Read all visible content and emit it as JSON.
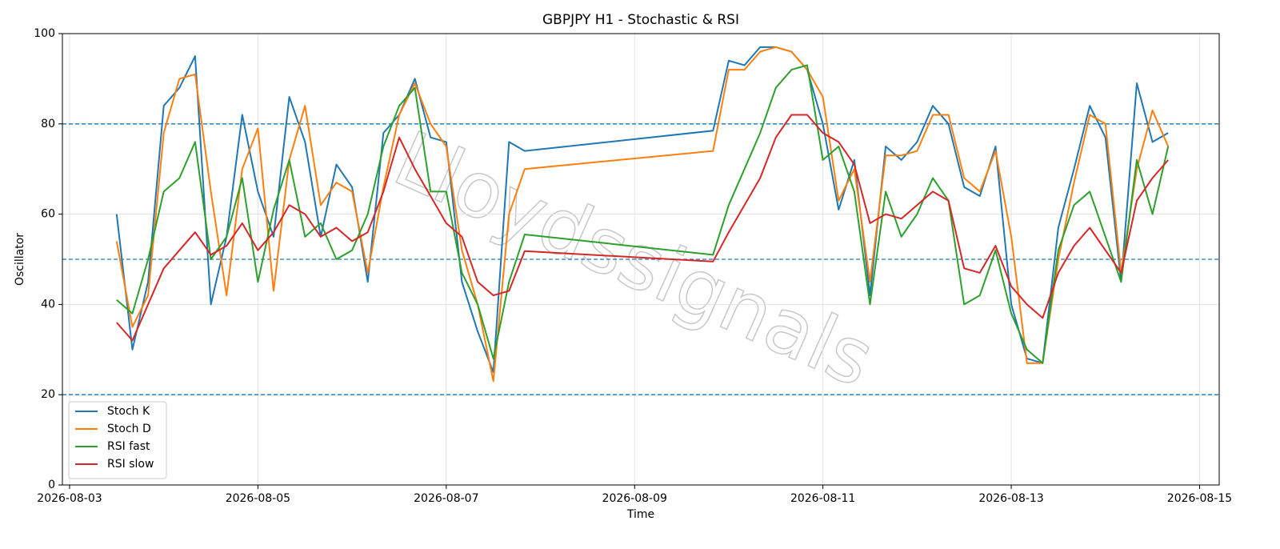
{
  "chart_data": {
    "type": "line",
    "title": "GBPJPY H1 - Stochastic & RSI",
    "xlabel": "Time",
    "ylabel": "Oscillator",
    "watermark": "Lloydssignals",
    "x": [
      "2026-08-03T12:00",
      "2026-08-03T16:00",
      "2026-08-03T20:00",
      "2026-08-04T00:00",
      "2026-08-04T04:00",
      "2026-08-04T08:00",
      "2026-08-04T12:00",
      "2026-08-04T16:00",
      "2026-08-04T20:00",
      "2026-08-05T00:00",
      "2026-08-05T04:00",
      "2026-08-05T08:00",
      "2026-08-05T12:00",
      "2026-08-05T16:00",
      "2026-08-05T20:00",
      "2026-08-06T00:00",
      "2026-08-06T04:00",
      "2026-08-06T08:00",
      "2026-08-06T12:00",
      "2026-08-06T16:00",
      "2026-08-06T20:00",
      "2026-08-07T00:00",
      "2026-08-07T04:00",
      "2026-08-07T08:00",
      "2026-08-07T12:00",
      "2026-08-07T16:00",
      "2026-08-07T20:00",
      "2026-08-09T20:00",
      "2026-08-10T00:00",
      "2026-08-10T04:00",
      "2026-08-10T08:00",
      "2026-08-10T12:00",
      "2026-08-10T16:00",
      "2026-08-10T20:00",
      "2026-08-11T00:00",
      "2026-08-11T04:00",
      "2026-08-11T08:00",
      "2026-08-11T12:00",
      "2026-08-11T16:00",
      "2026-08-11T20:00",
      "2026-08-12T00:00",
      "2026-08-12T04:00",
      "2026-08-12T08:00",
      "2026-08-12T12:00",
      "2026-08-12T16:00",
      "2026-08-12T20:00",
      "2026-08-13T00:00",
      "2026-08-13T04:00",
      "2026-08-13T08:00",
      "2026-08-13T12:00",
      "2026-08-13T16:00",
      "2026-08-13T20:00",
      "2026-08-14T00:00",
      "2026-08-14T04:00",
      "2026-08-14T08:00",
      "2026-08-14T12:00",
      "2026-08-14T16:00"
    ],
    "series": [
      {
        "name": "Stoch K",
        "color": "#1f77b4",
        "values": [
          60,
          30,
          45,
          84,
          88,
          95,
          40,
          55,
          82,
          65,
          55,
          86,
          76,
          55,
          71,
          66,
          45,
          78,
          82,
          90,
          77,
          76,
          45,
          34,
          25,
          76,
          74,
          78.5,
          94,
          93,
          97,
          97,
          96,
          92,
          80,
          61,
          72,
          42,
          75,
          72,
          76,
          84,
          80,
          66,
          64,
          75,
          40,
          28,
          27,
          57,
          70,
          84,
          77,
          45,
          89,
          76,
          78
        ]
      },
      {
        "name": "Stoch D",
        "color": "#ff7f0e",
        "values": [
          54,
          35,
          42,
          78,
          90,
          91,
          65,
          42,
          70,
          79,
          43,
          72,
          84,
          62,
          67,
          65,
          47,
          66,
          82,
          89,
          80,
          75,
          52,
          40,
          23,
          60,
          70,
          74,
          92,
          92,
          96,
          97,
          96,
          92,
          86,
          63,
          70,
          45,
          73,
          73,
          74,
          82,
          82,
          68,
          65,
          74,
          55,
          27,
          27,
          50,
          67,
          82,
          80,
          47,
          70,
          83,
          75
        ]
      },
      {
        "name": "RSI fast",
        "color": "#2ca02c",
        "values": [
          41,
          38,
          50,
          65,
          68,
          76,
          50,
          55,
          68,
          45,
          61,
          72,
          55,
          58,
          50,
          52,
          60,
          75,
          84,
          88,
          65,
          65,
          47,
          40,
          28,
          45,
          55.5,
          51,
          62,
          70,
          78,
          88,
          92,
          93,
          72,
          75,
          65,
          40,
          65,
          55,
          60,
          68,
          63,
          40,
          42,
          52,
          38,
          30,
          27,
          52,
          62,
          65,
          55,
          45,
          72,
          60,
          75
        ]
      },
      {
        "name": "RSI slow",
        "color": "#d62728",
        "values": [
          36,
          32,
          40,
          48,
          52,
          56,
          51,
          53,
          58,
          52,
          56,
          62,
          60,
          55,
          57,
          54,
          56,
          65,
          77,
          70,
          64,
          58,
          55,
          45,
          42,
          43,
          51.8,
          49.5,
          56,
          62,
          68,
          77,
          82,
          82,
          78,
          76,
          71,
          58,
          60,
          59,
          62,
          65,
          63,
          48,
          47,
          53,
          44,
          40,
          37,
          47,
          53,
          57,
          52,
          47,
          63,
          68,
          72
        ]
      }
    ],
    "hlines": [
      80,
      50,
      20
    ],
    "hline_color": "#1f77b4",
    "xlim": [
      "2026-08-02T22:10",
      "2026-08-15T05:00"
    ],
    "xticks": [
      "2026-08-03",
      "2026-08-05",
      "2026-08-07",
      "2026-08-09",
      "2026-08-11",
      "2026-08-13",
      "2026-08-15"
    ],
    "ylim": [
      0,
      100
    ],
    "yticks": [
      0,
      20,
      40,
      60,
      80,
      100
    ],
    "grid": true,
    "legend": "lower left"
  }
}
